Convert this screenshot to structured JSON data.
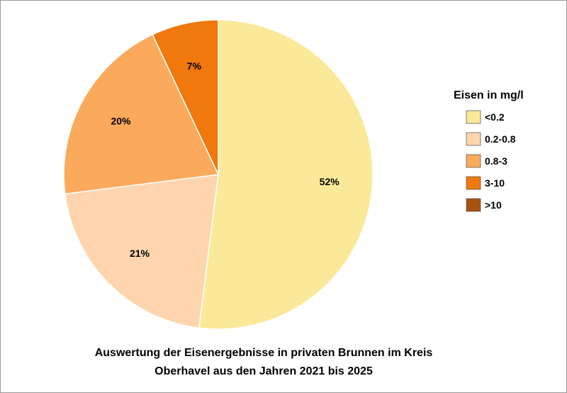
{
  "chart_data": {
    "type": "pie",
    "title": "Auswertung der Eisenergebnisse in privaten Brunnen im Kreis",
    "title_line2": "Oberhavel aus den Jahren 2021 bis 2025",
    "legend_title": "Eisen in mg/l",
    "legend_position": "right",
    "categories": [
      "<0.2",
      "0.2-0.8",
      "0.8-3",
      "3-10",
      ">10"
    ],
    "values": [
      52,
      21,
      20,
      7,
      0
    ],
    "data_labels": [
      "52%",
      "21%",
      "20%",
      "7%",
      ""
    ],
    "colors": [
      "#fbe99a",
      "#fed5ad",
      "#fbaa5c",
      "#f0780c",
      "#a65310"
    ]
  }
}
